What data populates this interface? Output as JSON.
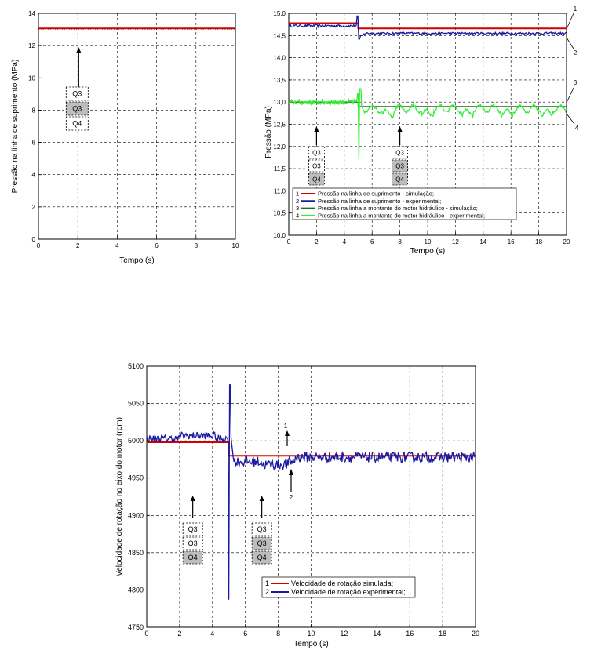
{
  "chart_data": [
    {
      "type": "line",
      "xlabel": "Tempo (s)",
      "ylabel": "Pressão na linha de suprimento (MPa)",
      "xlim": [
        0,
        10
      ],
      "ylim": [
        0,
        15
      ],
      "xticks": [
        "0",
        "2",
        "4",
        "6",
        "8",
        "10"
      ],
      "yticks": [
        "0",
        "2",
        "4",
        "6",
        "8",
        "10",
        "12",
        "14"
      ],
      "grid": true,
      "series": [
        {
          "color": "#d40000",
          "x": [
            0,
            10
          ],
          "y": [
            14.0,
            14.0
          ]
        },
        {
          "color": "#000000",
          "style": "dotted",
          "x": [
            0,
            10
          ],
          "y": [
            13.95,
            13.95
          ]
        }
      ],
      "annotations": {
        "arrow_x": 3,
        "arrow_y_from": 9.4,
        "arrow_y_to": 12.7,
        "labels": [
          "Q3",
          "Q3",
          "Q4"
        ],
        "highlighted": [
          false,
          true,
          false
        ]
      }
    },
    {
      "type": "line",
      "xlabel": "Tempo (s)",
      "ylabel": "Pressão (MPa)",
      "xlim": [
        0,
        20
      ],
      "ylim": [
        10.0,
        15.0
      ],
      "xticks": [
        "0",
        "2",
        "4",
        "6",
        "8",
        "10",
        "12",
        "14",
        "16",
        "18",
        "20"
      ],
      "yticks": [
        "10,0",
        "10,5",
        "11,0",
        "11,5",
        "12,0",
        "12,5",
        "13,0",
        "13,5",
        "14,0",
        "14,5",
        "15,0"
      ],
      "grid": true,
      "legend_position": "lower-left",
      "legend": [
        "Pressão na linha de suprimento - simulação;",
        "Pressão na linha de suprimento - experimental;",
        "Pressão na linha a montante do motor hidráulico - simulação;",
        "Pressão na linha a montante do motor hidráulico - experimental;"
      ],
      "legend_numbers": [
        "1",
        "2",
        "3",
        "4"
      ],
      "series_colors": [
        "#d40000",
        "#1a1aa0",
        "#1f6b1f",
        "#33ee33"
      ],
      "series_levels": {
        "supply_sim": {
          "before": 14.78,
          "after": 14.66
        },
        "supply_exp": {
          "before": 14.72,
          "after": 14.55
        },
        "motor_sim": {
          "before": 13.0,
          "after": 12.9
        },
        "motor_exp": {
          "before": 13.0,
          "after": 12.85
        }
      },
      "step_time": 5.0,
      "curve_markers": [
        "1",
        "2",
        "3",
        "4"
      ],
      "annotations": [
        {
          "arrow_x": 2,
          "labels": [
            "Q3",
            "Q3",
            "Q4"
          ],
          "highlighted": [
            false,
            false,
            true
          ]
        },
        {
          "arrow_x": 8,
          "labels": [
            "Q3",
            "Q3",
            "Q4"
          ],
          "highlighted": [
            false,
            true,
            true
          ]
        }
      ]
    },
    {
      "type": "line",
      "xlabel": "Tempo (s)",
      "ylabel": "Velocidade de rotação no eixo do motor (rpm)",
      "xlim": [
        0,
        20
      ],
      "ylim": [
        4750,
        5100
      ],
      "xticks": [
        "0",
        "2",
        "4",
        "6",
        "8",
        "10",
        "12",
        "14",
        "16",
        "18",
        "20"
      ],
      "yticks": [
        "4750",
        "4800",
        "4850",
        "4900",
        "4950",
        "5000",
        "5050",
        "5100"
      ],
      "grid": true,
      "legend_position": "bottom-center",
      "legend": [
        "Velocidade de rotação simulada;",
        "Velocidade de rotação experimental;"
      ],
      "legend_numbers": [
        "1",
        "2"
      ],
      "series_colors": [
        "#d40000",
        "#1a1aa0"
      ],
      "series_levels": {
        "sim": {
          "before": 4998,
          "after": 4980
        },
        "exp": {
          "before": 5003,
          "after": 4978
        }
      },
      "step_time": 5.0,
      "spike": {
        "max": 5075,
        "min": 4787
      },
      "curve_markers": [
        "1",
        "2"
      ],
      "annotations": [
        {
          "arrow_x": 2.8,
          "labels": [
            "Q3",
            "Q3",
            "Q4"
          ],
          "highlighted": [
            false,
            false,
            true
          ]
        },
        {
          "arrow_x": 7.0,
          "labels": [
            "Q3",
            "Q3",
            "Q4"
          ],
          "highlighted": [
            false,
            true,
            true
          ]
        }
      ]
    }
  ]
}
